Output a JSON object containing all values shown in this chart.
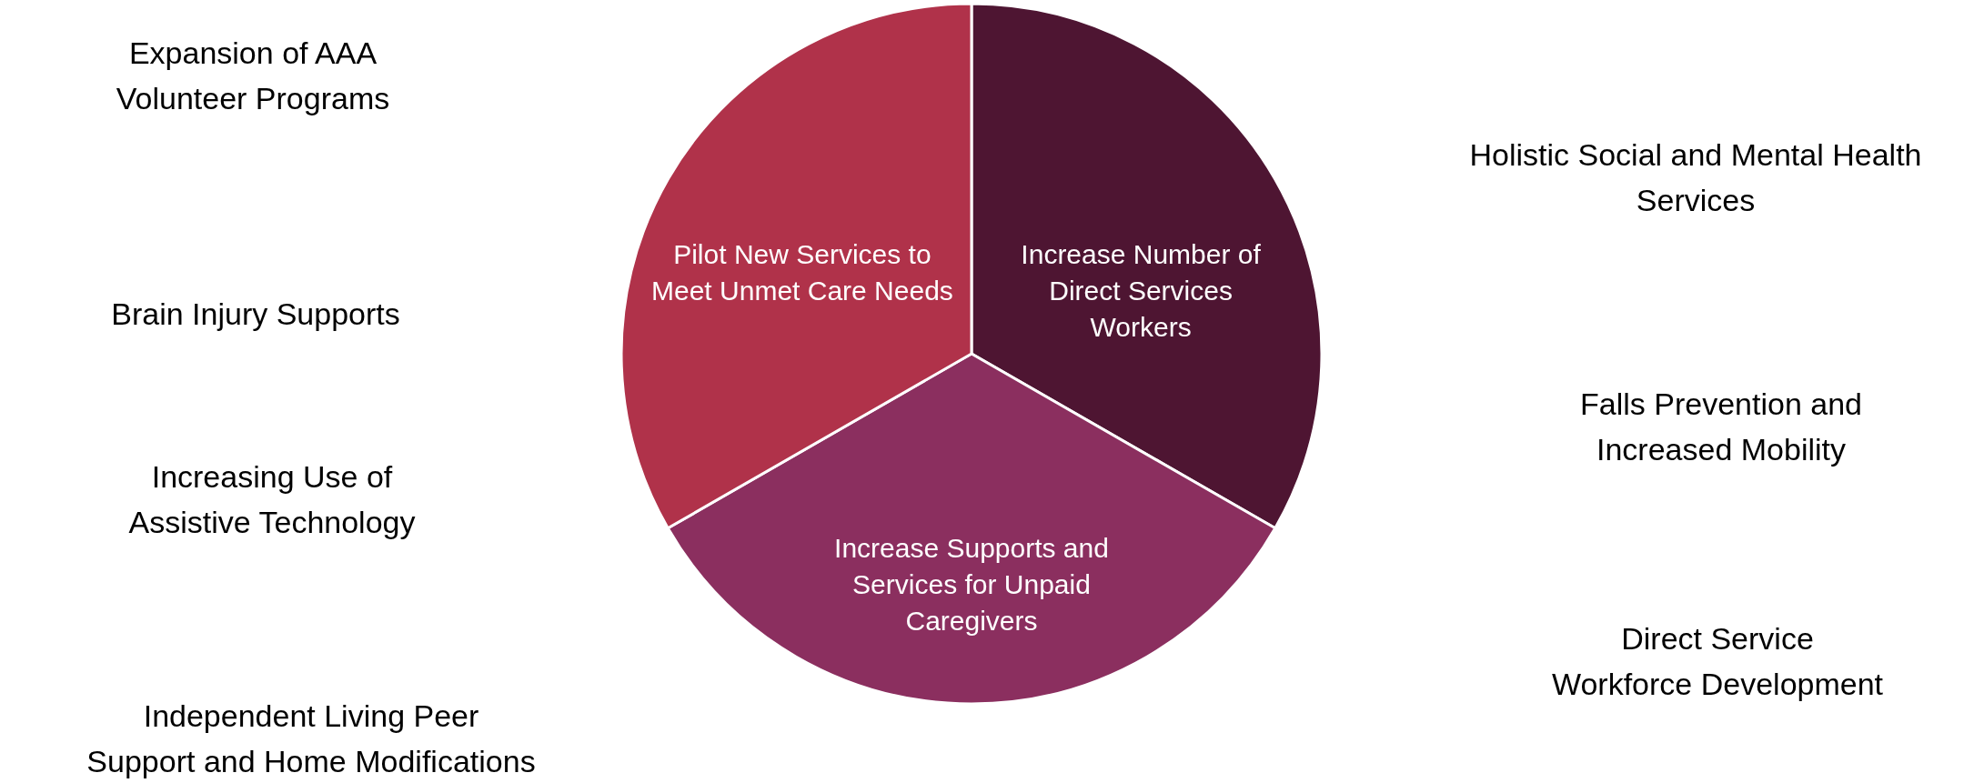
{
  "chart_data": {
    "type": "pie",
    "categories": [
      "Increase Number of Direct Services Workers",
      "Increase Supports and Services for Unpaid Caregivers",
      "Pilot New Services to Meet Unmet Care Needs"
    ],
    "values": [
      33.3,
      33.4,
      33.3
    ],
    "colors": [
      "#4e1532",
      "#8b2f5f",
      "#b0324a"
    ],
    "annotations": [
      "Expansion of AAA Volunteer Programs",
      "Brain Injury Supports",
      "Increasing Use of Assistive Technology",
      "Independent Living Peer Support and Home Modifications",
      "Holistic Social and Mental Health Services",
      "Falls Prevention and Increased Mobility",
      "Direct Service Workforce Development"
    ]
  }
}
